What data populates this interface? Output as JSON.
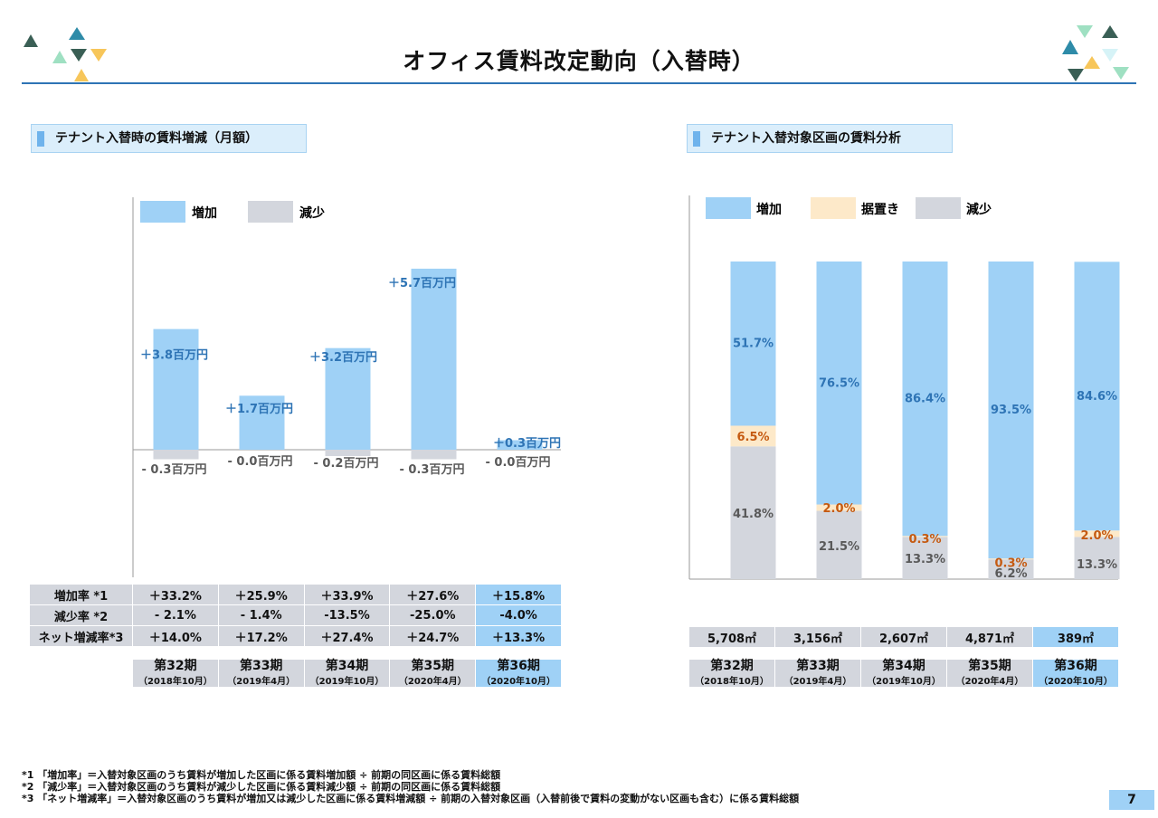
{
  "title": "オフィス賃料改定動向（入替時）",
  "left_section": {
    "heading": "テナント入替時の賃料増減（月額）"
  },
  "right_section": {
    "heading": "テナント入替対象区画の賃料分析"
  },
  "colors": {
    "increase": "#9fd1f6",
    "flat": "#fde9c9",
    "decrease": "#d3d6dd",
    "accent_blue": "#2e74b5",
    "label_orange": "#c55a11",
    "teal": "#2e8ba8",
    "dark_green": "#3a5f55",
    "yellow": "#f7c65a",
    "light_green": "#9fe0c2"
  },
  "chart_data": [
    {
      "type": "bar",
      "legend": [
        "増加",
        "減少"
      ],
      "categories": [
        "第32期",
        "第33期",
        "第34期",
        "第35期",
        "第36期"
      ],
      "series": [
        {
          "name": "増加",
          "values": [
            3.8,
            1.7,
            3.2,
            5.7,
            0.3
          ],
          "labels": [
            "＋3.8百万円",
            "＋1.7百万円",
            "＋3.2百万円",
            "＋5.7百万円",
            "＋0.3百万円"
          ]
        },
        {
          "name": "減少",
          "values": [
            -0.3,
            -0.0,
            -0.2,
            -0.3,
            -0.0
          ],
          "labels": [
            "- 0.3百万円",
            "- 0.0百万円",
            "- 0.2百万円",
            "- 0.3百万円",
            "- 0.0百万円"
          ]
        }
      ],
      "ylim": [
        -0.3,
        6.3
      ],
      "legend_position": "top-left",
      "table": {
        "rows": [
          {
            "label": "増加率 *1",
            "values": [
              "＋33.2%",
              "＋25.9%",
              "＋33.9%",
              "＋27.6%",
              "＋15.8%"
            ]
          },
          {
            "label": "減少率 *2",
            "values": [
              "- 2.1%",
              "- 1.4%",
              "-13.5%",
              "-25.0%",
              "-4.0%"
            ]
          },
          {
            "label": "ネット増減率*3",
            "values": [
              "＋14.0%",
              "＋17.2%",
              "＋27.4%",
              "＋24.7%",
              "＋13.3%"
            ]
          }
        ]
      },
      "periods": [
        "第32期",
        "第33期",
        "第34期",
        "第35期",
        "第36期"
      ],
      "period_dates": [
        "（2018年10月）",
        "（2019年4月）",
        "（2019年10月）",
        "（2020年4月）",
        "（2020年10月）"
      ]
    },
    {
      "type": "bar",
      "stacked": true,
      "percent": true,
      "legend": [
        "増加",
        "据置き",
        "減少"
      ],
      "categories": [
        "第32期",
        "第33期",
        "第34期",
        "第35期",
        "第36期"
      ],
      "series": [
        {
          "name": "減少",
          "values": [
            41.8,
            21.5,
            13.3,
            6.2,
            13.3
          ],
          "labels": [
            "41.8%",
            "21.5%",
            "13.3%",
            "6.2%",
            "13.3%"
          ]
        },
        {
          "name": "据置き",
          "values": [
            6.5,
            2.0,
            0.3,
            0.3,
            2.0
          ],
          "labels": [
            "6.5%",
            "2.0%",
            "0.3%",
            "0.3%",
            "2.0%"
          ]
        },
        {
          "name": "増加",
          "values": [
            51.7,
            76.5,
            86.4,
            93.5,
            84.6
          ],
          "labels": [
            "51.7%",
            "76.5%",
            "86.4%",
            "93.5%",
            "84.6%"
          ]
        }
      ],
      "ylim": [
        0,
        100
      ],
      "legend_position": "top-left",
      "areas": [
        "5,708㎡",
        "3,156㎡",
        "2,607㎡",
        "4,871㎡",
        "389㎡"
      ],
      "periods": [
        "第32期",
        "第33期",
        "第34期",
        "第35期",
        "第36期"
      ],
      "period_dates": [
        "（2018年10月）",
        "（2019年4月）",
        "（2019年10月）",
        "（2020年4月）",
        "（2020年10月）"
      ]
    }
  ],
  "notes": [
    "*1 「増加率」＝入替対象区画のうち賃料が増加した区画に係る賃料増加額 ÷ 前期の同区画に係る賃料総額",
    "*2 「減少率」＝入替対象区画のうち賃料が減少した区画に係る賃料減少額 ÷ 前期の同区画に係る賃料総額",
    "*3 「ネット増減率」＝入替対象区画のうち賃料が増加又は減少した区画に係る賃料増減額 ÷ 前期の入替対象区画（入替前後で賃料の変動がない区画も含む）に係る賃料総額"
  ],
  "page_number": "7"
}
